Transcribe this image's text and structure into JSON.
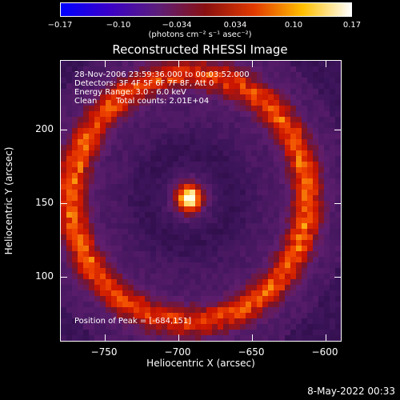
{
  "colorbar": {
    "ticks": [
      "−0.17",
      "−0.10",
      "−0.034",
      "0.034",
      "0.10",
      "0.17"
    ],
    "unit": "(photons cm⁻² s⁻¹ asec⁻²)",
    "colors": [
      "#0000ff",
      "#3a00c8",
      "#5c1e7a",
      "#8a1010",
      "#e23a00",
      "#ffc000",
      "#ffffff"
    ]
  },
  "title": "Reconstructed RHESSI Image",
  "info": {
    "line1": "28-Nov-2006 23:59:36.000 to 00:03:52.000",
    "line2": "Detectors: 3F 4F 5F 6F 7F 8F, Att 0",
    "line3": "Energy Range: 3.0 - 6.0 keV",
    "line4a": "Clean",
    "line4b": "Total counts: 2.01E+04"
  },
  "peak_label": "Position of Peak = [-684,151]",
  "axes": {
    "xlabel": "Heliocentric X (arcsec)",
    "ylabel": "Heliocentric Y (arcsec)",
    "xticks": [
      "−750",
      "−700",
      "−650",
      "−600"
    ],
    "yticks": [
      "200",
      "150",
      "100"
    ],
    "xlim": [
      -778,
      -588
    ],
    "ylim": [
      55,
      245
    ]
  },
  "timestamp": "8-May-2022 00:33"
}
